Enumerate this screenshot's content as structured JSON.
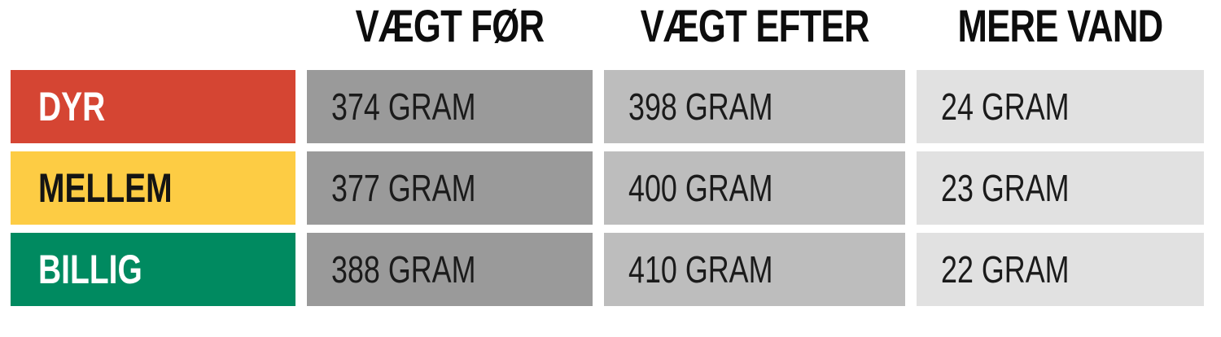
{
  "table": {
    "headers": [
      {
        "label": "VÆGT FØR"
      },
      {
        "label": "VÆGT EFTER"
      },
      {
        "label": "MERE VAND"
      }
    ],
    "rows": [
      {
        "label": "DYR",
        "before": "374 GRAM",
        "after": "398 GRAM",
        "more": "24 GRAM",
        "row_color": "#d54533",
        "label_text_color": "#ffffff"
      },
      {
        "label": "MELLEM",
        "before": "377 GRAM",
        "after": "400 GRAM",
        "more": "23 GRAM",
        "row_color": "#fdcc44",
        "label_text_color": "#141414"
      },
      {
        "label": "BILLIG",
        "before": "388 GRAM",
        "after": "410 GRAM",
        "more": "22 GRAM",
        "row_color": "#008a60",
        "label_text_color": "#ffffff"
      }
    ],
    "column_fill_colors": {
      "vaegt_foer": "#9a9a9a",
      "vaegt_efter": "#bdbdbd",
      "mere_vand": "#e1e1e1"
    },
    "header_text_color": "#0d0d0d",
    "value_text_color": "#1b1b1b"
  },
  "chart_data": {
    "type": "table",
    "columns": [
      "",
      "VÆGT FØR",
      "VÆGT EFTER",
      "MERE VAND"
    ],
    "rows": [
      [
        "DYR",
        "374 GRAM",
        "398 GRAM",
        "24 GRAM"
      ],
      [
        "MELLEM",
        "377 GRAM",
        "400 GRAM",
        "23 GRAM"
      ],
      [
        "BILLIG",
        "388 GRAM",
        "410 GRAM",
        "22 GRAM"
      ]
    ],
    "categories": [
      "DYR",
      "MELLEM",
      "BILLIG"
    ],
    "series": [
      {
        "name": "VÆGT FØR",
        "values": [
          374,
          377,
          388
        ]
      },
      {
        "name": "VÆGT EFTER",
        "values": [
          398,
          400,
          410
        ]
      },
      {
        "name": "MERE VAND",
        "values": [
          24,
          23,
          22
        ]
      }
    ],
    "unit": "GRAM",
    "row_colors": [
      "#d54533",
      "#fdcc44",
      "#008a60"
    ]
  }
}
